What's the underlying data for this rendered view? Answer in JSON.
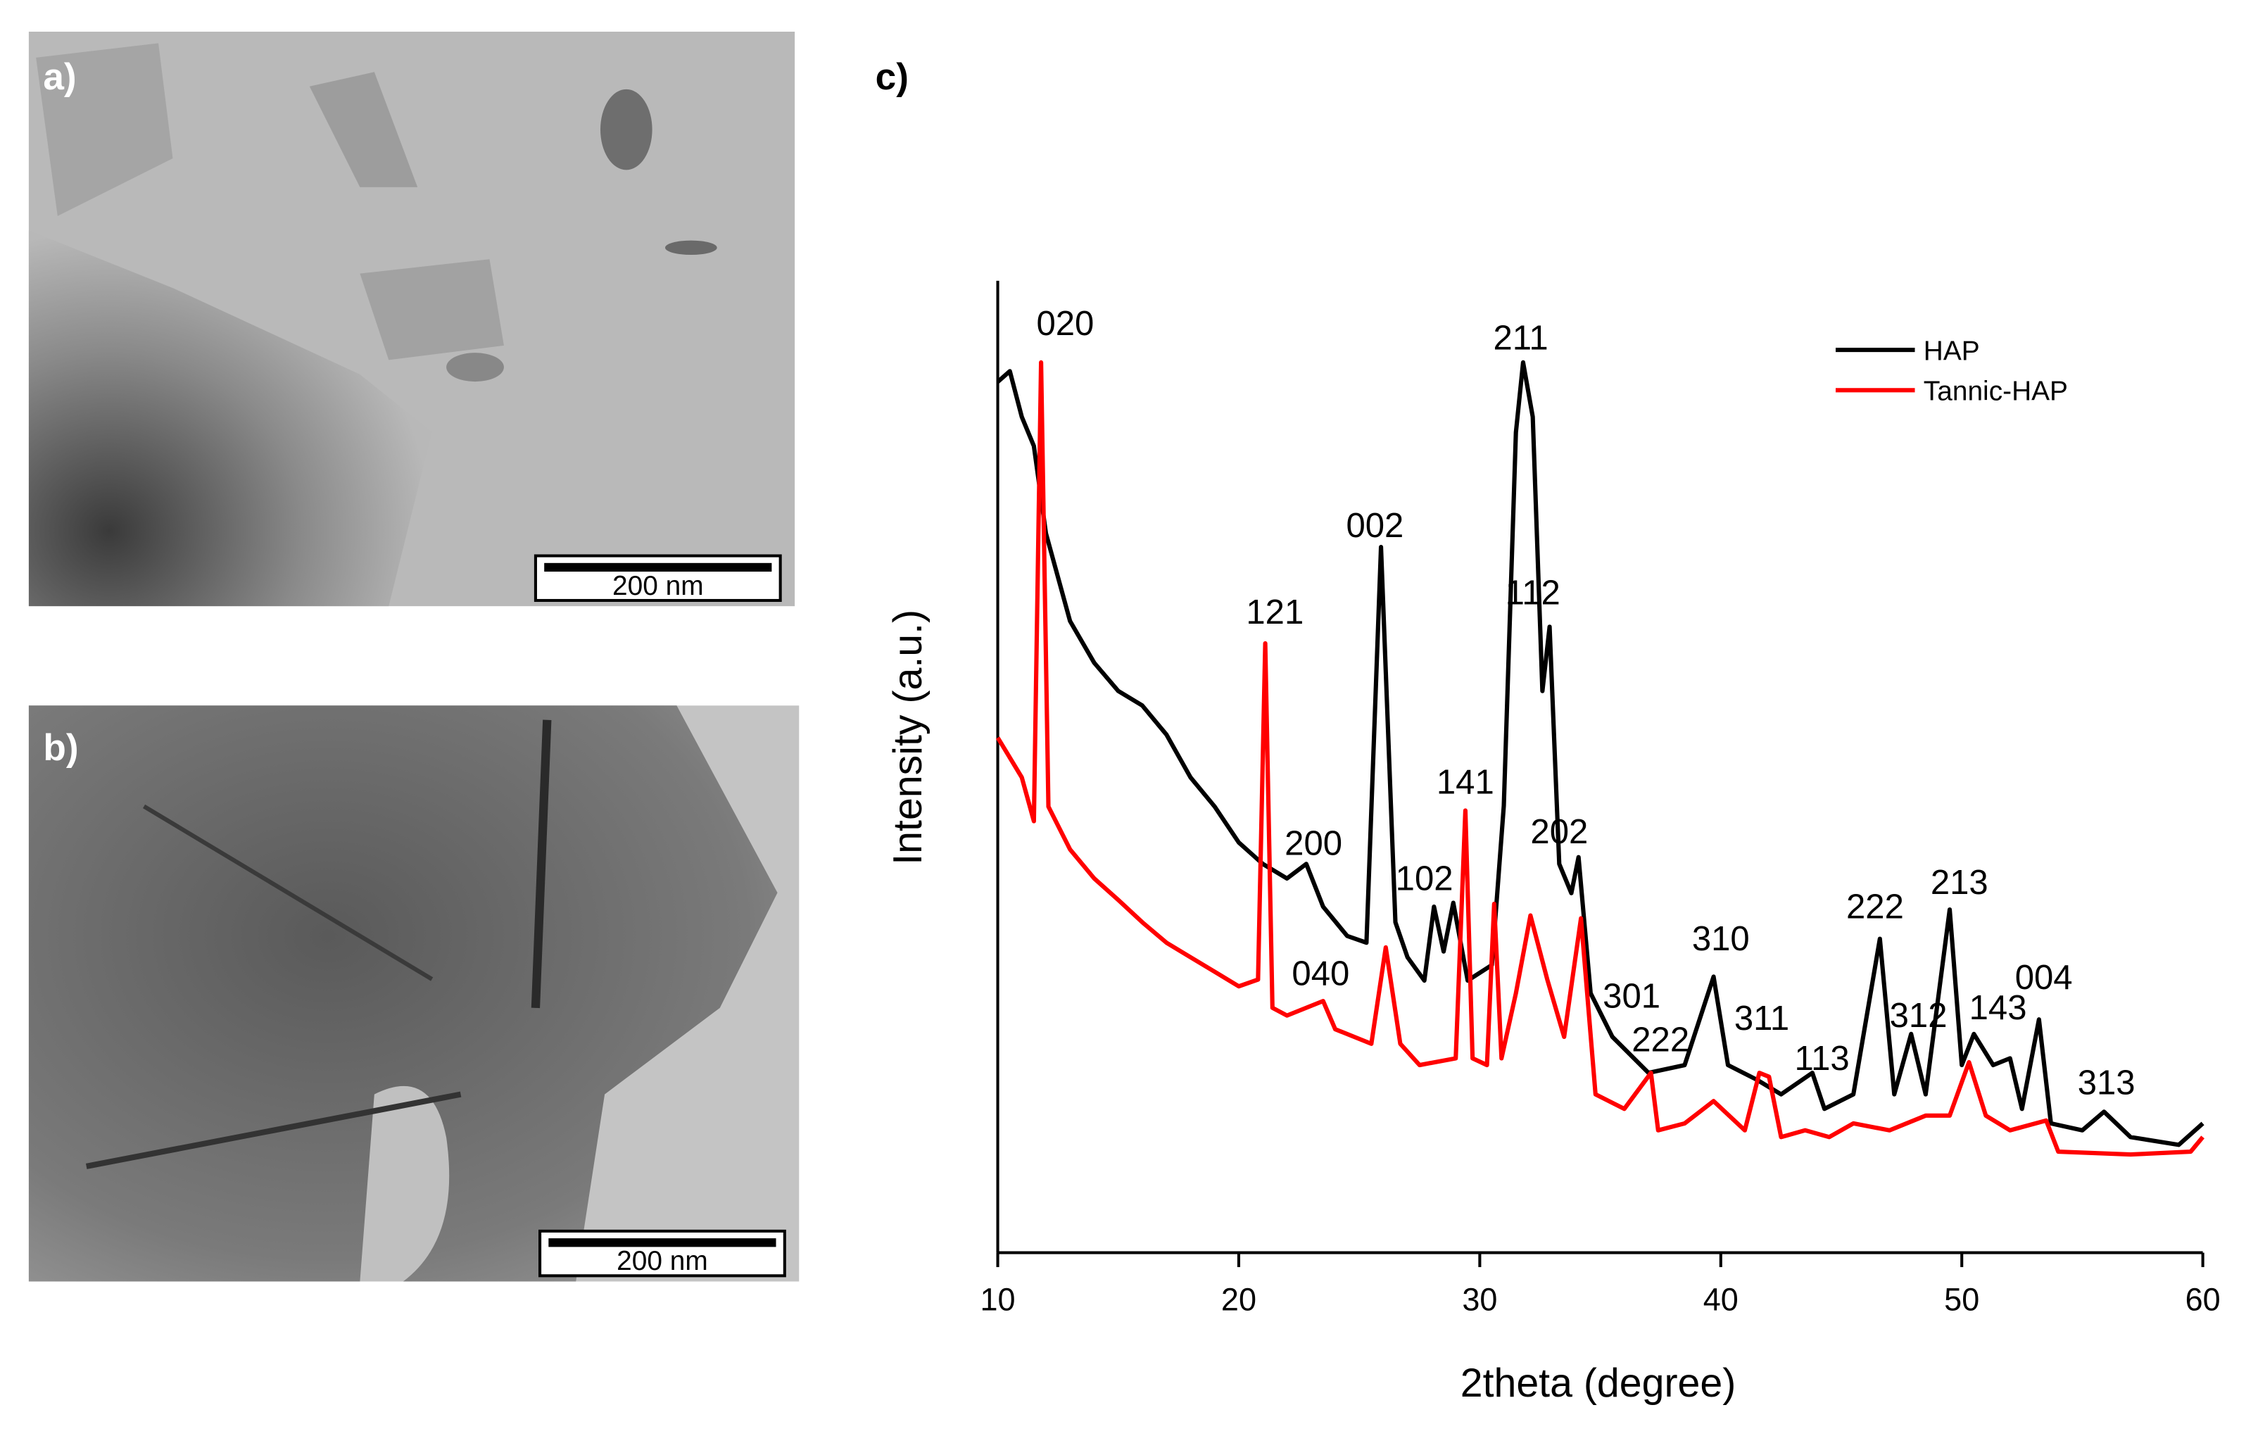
{
  "panels": [
    {
      "label": "a)",
      "scale_bar": "200 nm"
    },
    {
      "label": "b)",
      "scale_bar": "200 nm"
    }
  ],
  "chart_data": {
    "type": "line",
    "panel_label": "c)",
    "xlabel": "2theta (degree)",
    "ylabel": "Intensity (a.u.)",
    "xlim": [
      10,
      60
    ],
    "xticks": [
      10,
      20,
      30,
      40,
      50,
      60
    ],
    "ylim": [
      0,
      100
    ],
    "legend": "upper right",
    "series": [
      {
        "name": "HAP",
        "color": "#000000",
        "x": [
          10,
          10.5,
          11,
          11.5,
          12,
          13,
          14,
          15,
          16,
          17,
          18,
          19,
          20,
          21,
          22,
          22.8,
          23.5,
          24.5,
          25.3,
          25.9,
          26.5,
          27,
          27.7,
          28.1,
          28.5,
          28.9,
          29.5,
          30.5,
          31,
          31.5,
          31.8,
          32.2,
          32.6,
          32.9,
          33.3,
          33.8,
          34.1,
          34.6,
          35.5,
          37,
          38.5,
          39.7,
          40.3,
          41.5,
          42.5,
          43.8,
          44.3,
          45.5,
          46.6,
          47.2,
          47.9,
          48.5,
          49.5,
          50,
          50.5,
          51.3,
          52,
          52.5,
          53.2,
          53.7,
          55,
          55.9,
          57,
          59,
          60
        ],
        "values": [
          89.6,
          90.7,
          86,
          83,
          74,
          65,
          60.7,
          57.8,
          56.3,
          53.3,
          48.9,
          45.9,
          42.2,
          40,
          38.5,
          40,
          35.6,
          32.6,
          31.9,
          72.6,
          34,
          30.4,
          28,
          35.6,
          31,
          36,
          28,
          29.6,
          46,
          84.4,
          91.6,
          86,
          57.8,
          64.4,
          40,
          37,
          40.7,
          26.7,
          22.2,
          18.5,
          19.3,
          28.4,
          19.3,
          17.8,
          16.3,
          18.5,
          14.8,
          16.3,
          32.3,
          16.3,
          22.5,
          16.3,
          35.3,
          19.3,
          22.5,
          19.3,
          20,
          14.8,
          24,
          13.3,
          12.6,
          14.5,
          11.9,
          11.1,
          13.3
        ]
      },
      {
        "name": "Tannic-HAP",
        "color": "#ff0000",
        "x": [
          10,
          11,
          11.5,
          11.8,
          12.1,
          13,
          14,
          15,
          16,
          17,
          18,
          19,
          20,
          20.8,
          21.1,
          21.4,
          22,
          23.5,
          24,
          25.5,
          26.1,
          26.7,
          27.5,
          29,
          29.4,
          29.7,
          30.3,
          30.6,
          30.9,
          31.5,
          32.1,
          32.8,
          33.5,
          34.2,
          34.8,
          36,
          37.1,
          37.4,
          38.5,
          39.7,
          41,
          41.6,
          42,
          42.5,
          43.5,
          44.5,
          45.5,
          47,
          48.5,
          49.5,
          50.3,
          51,
          52,
          53.5,
          54,
          57,
          59.5,
          60
        ],
        "values": [
          53,
          48.9,
          44.4,
          91.6,
          45.9,
          41.5,
          38.5,
          36.3,
          34,
          31.9,
          30.4,
          28.9,
          27.4,
          28.1,
          62.7,
          25.2,
          24.4,
          25.9,
          23,
          21.5,
          31.4,
          21.5,
          19.3,
          20,
          45.5,
          20,
          19.3,
          35.9,
          20,
          26.7,
          34.7,
          28.1,
          22.2,
          34.4,
          16.3,
          14.8,
          18.5,
          12.6,
          13.3,
          15.6,
          12.6,
          18.5,
          18.1,
          11.9,
          12.6,
          11.9,
          13.3,
          12.6,
          14.1,
          14.1,
          19.6,
          14.1,
          12.6,
          13.6,
          10.4,
          10.1,
          10.4,
          11.9
        ]
      }
    ],
    "annotations": [
      {
        "text": "020",
        "x": 12.8,
        "y": 95.6
      },
      {
        "text": "211",
        "x": 31.7,
        "y": 94.1
      },
      {
        "text": "002",
        "x": 25.65,
        "y": 74.8
      },
      {
        "text": "121",
        "x": 21.5,
        "y": 65.9
      },
      {
        "text": "112",
        "x": 32.2,
        "y": 67.9
      },
      {
        "text": "141",
        "x": 29.4,
        "y": 48.4
      },
      {
        "text": "200",
        "x": 23.1,
        "y": 42.1
      },
      {
        "text": "202",
        "x": 33.3,
        "y": 43.3
      },
      {
        "text": "102",
        "x": 27.7,
        "y": 38.5
      },
      {
        "text": "040",
        "x": 23.4,
        "y": 28.7
      },
      {
        "text": "301",
        "x": 36.3,
        "y": 26.4
      },
      {
        "text": "310",
        "x": 40.0,
        "y": 32.3
      },
      {
        "text": "222",
        "x": 46.4,
        "y": 35.6
      },
      {
        "text": "213",
        "x": 49.9,
        "y": 38.1
      },
      {
        "text": "222",
        "x": 37.5,
        "y": 21.9
      },
      {
        "text": "311",
        "x": 41.7,
        "y": 24.1
      },
      {
        "text": "113",
        "x": 44.2,
        "y": 20
      },
      {
        "text": "312",
        "x": 48.2,
        "y": 24.4
      },
      {
        "text": "143",
        "x": 51.5,
        "y": 25.2
      },
      {
        "text": "004",
        "x": 53.4,
        "y": 28.3
      },
      {
        "text": "313",
        "x": 56.0,
        "y": 17.5
      }
    ]
  }
}
